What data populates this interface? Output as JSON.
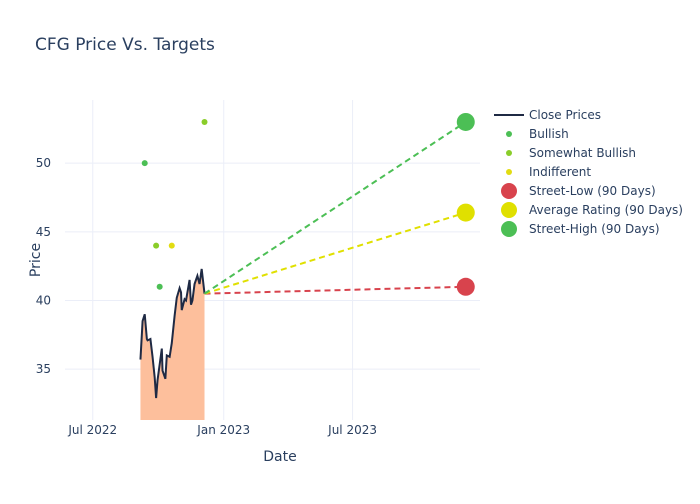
{
  "chart_data": {
    "type": "line",
    "title": "CFG Price Vs. Targets",
    "xlabel": "Date",
    "ylabel": "Price",
    "xlim": [
      "2022-05-23",
      "2023-12-27"
    ],
    "ylim": [
      31.3,
      54.6
    ],
    "x_ticks": [
      {
        "date": "2022-07-01",
        "label": "Jul 2022"
      },
      {
        "date": "2023-01-01",
        "label": "Jan 2023"
      },
      {
        "date": "2023-07-01",
        "label": "Jul 2023"
      }
    ],
    "y_ticks": [
      35,
      40,
      45,
      50
    ],
    "grid": true,
    "legend_position": "right",
    "close_prices": [
      [
        "2022-09-06",
        35.7
      ],
      [
        "2022-09-09",
        38.5
      ],
      [
        "2022-09-12",
        39.0
      ],
      [
        "2022-09-15",
        37.2
      ],
      [
        "2022-09-16",
        37.1
      ],
      [
        "2022-09-20",
        37.2
      ],
      [
        "2022-09-23",
        35.9
      ],
      [
        "2022-09-26",
        34.4
      ],
      [
        "2022-09-28",
        32.9
      ],
      [
        "2022-09-30",
        34.2
      ],
      [
        "2022-10-06",
        36.5
      ],
      [
        "2022-10-07",
        34.9
      ],
      [
        "2022-10-11",
        34.3
      ],
      [
        "2022-10-13",
        36.0
      ],
      [
        "2022-10-17",
        35.9
      ],
      [
        "2022-10-20",
        36.9
      ],
      [
        "2022-10-24",
        38.9
      ],
      [
        "2022-10-27",
        40.2
      ],
      [
        "2022-10-31",
        40.9
      ],
      [
        "2022-11-02",
        40.6
      ],
      [
        "2022-11-03",
        39.3
      ],
      [
        "2022-11-07",
        40.1
      ],
      [
        "2022-11-09",
        40.0
      ],
      [
        "2022-11-14",
        41.5
      ],
      [
        "2022-11-16",
        39.7
      ],
      [
        "2022-11-18",
        40.0
      ],
      [
        "2022-11-21",
        41.2
      ],
      [
        "2022-11-25",
        41.8
      ],
      [
        "2022-11-28",
        41.2
      ],
      [
        "2022-12-01",
        42.3
      ],
      [
        "2022-12-05",
        40.5
      ]
    ],
    "ratings": {
      "Bullish": [
        [
          "2022-09-12",
          50
        ],
        [
          "2022-10-03",
          41
        ]
      ],
      "Somewhat Bullish": [
        [
          "2022-09-28",
          44
        ],
        [
          "2022-12-05",
          53
        ]
      ],
      "Indifferent": [
        [
          "2022-10-20",
          44
        ]
      ]
    },
    "targets": {
      "start": [
        "2022-12-05",
        40.5
      ],
      "end_date": "2023-12-07",
      "Street-Low (90 Days)": 41,
      "Average Rating (90 Days)": 46.4,
      "Street-High (90 Days)": 53
    },
    "legend": [
      "Close Prices",
      "Bullish",
      "Somewhat Bullish",
      "Indifferent",
      "Street-Low (90 Days)",
      "Average Rating (90 Days)",
      "Street-High (90 Days)"
    ],
    "colors": {
      "close": "#1f2a44",
      "fill": "#fdbf9c",
      "Bullish": "#4cbf55",
      "Somewhat Bullish": "#8acd2a",
      "Indifferent": "#e2dc12",
      "low": "#d8434d",
      "avg": "#e0e000",
      "high": "#4cbf55",
      "grid": "#ebeef8"
    }
  }
}
